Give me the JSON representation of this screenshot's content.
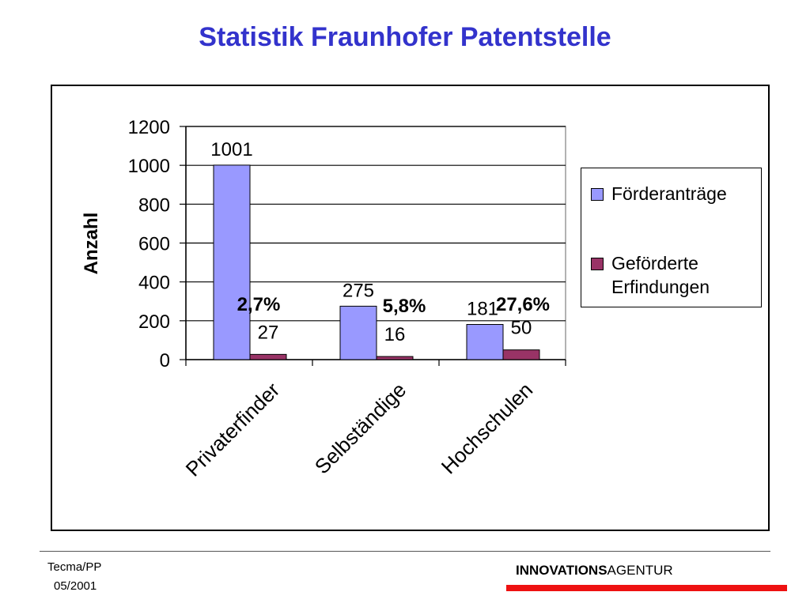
{
  "slide": {
    "title": "Statistik Fraunhofer Patentstelle",
    "footer": {
      "author": "Tecma/PP",
      "date": "05/2001"
    },
    "brand": {
      "bold": "INNOVATIONS",
      "regular": "AGENTUR",
      "bar_color": "#ee1111"
    },
    "title_color": "#3333cc"
  },
  "chart_data": {
    "type": "bar",
    "title": "",
    "xlabel": "",
    "ylabel": "Anzahl",
    "ylim": [
      0,
      1200
    ],
    "yticks": [
      0,
      200,
      400,
      600,
      800,
      1000,
      1200
    ],
    "grid": true,
    "legend_placement": "right",
    "categories": [
      "Privaterfinder",
      "Selbständige",
      "Hochschulen"
    ],
    "series": [
      {
        "name": "Förderanträge",
        "values": [
          1001,
          275,
          181
        ],
        "color": "#9999ff",
        "labels": [
          "1001",
          "275",
          "181"
        ]
      },
      {
        "name": "Geförderte Erfindungen",
        "values": [
          27,
          16,
          50
        ],
        "color": "#993366",
        "labels": [
          "27",
          "16",
          "50"
        ]
      }
    ],
    "annotations": [
      "2,7%",
      "5,8%",
      "27,6%"
    ]
  }
}
